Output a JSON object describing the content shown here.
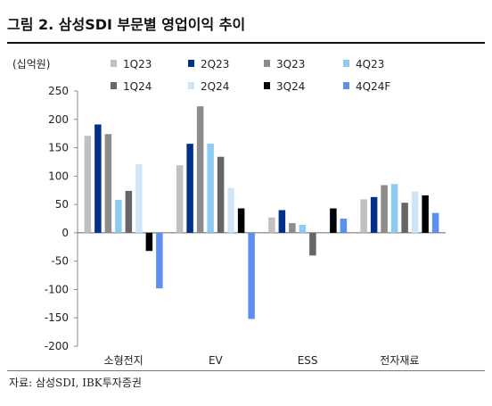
{
  "title": "그림 2. 삼성SDI 부문별 영업이익 추이",
  "source": "자료: 삼성SDI, IBK투자증권",
  "chart_data": {
    "type": "bar",
    "title": "",
    "ylabel": "(십억원)",
    "xlabel": "",
    "ylim": [
      -200,
      250
    ],
    "yticks": [
      250,
      200,
      150,
      100,
      50,
      0,
      -50,
      -100,
      -150,
      -200
    ],
    "grid": false,
    "legend_position": "top-right",
    "categories": [
      "소형전지",
      "EV",
      "ESS",
      "전자재료"
    ],
    "series": [
      {
        "name": "1Q23",
        "color": "#c0c0c0",
        "values": [
          171,
          119,
          27,
          59
        ]
      },
      {
        "name": "2Q23",
        "color": "#003087",
        "values": [
          191,
          157,
          40,
          63
        ]
      },
      {
        "name": "3Q23",
        "color": "#8c8c8c",
        "values": [
          174,
          223,
          17,
          84
        ]
      },
      {
        "name": "4Q23",
        "color": "#8ccbf2",
        "values": [
          58,
          157,
          14,
          86
        ]
      },
      {
        "name": "1Q24",
        "color": "#666666",
        "values": [
          74,
          134,
          -40,
          53
        ]
      },
      {
        "name": "2Q24",
        "color": "#cfe6f8",
        "values": [
          121,
          79,
          0,
          73
        ]
      },
      {
        "name": "3Q24",
        "color": "#000000",
        "values": [
          -32,
          43,
          43,
          66
        ]
      },
      {
        "name": "4Q24F",
        "color": "#5b8ff0",
        "values": [
          -98,
          -152,
          25,
          35
        ]
      }
    ]
  }
}
